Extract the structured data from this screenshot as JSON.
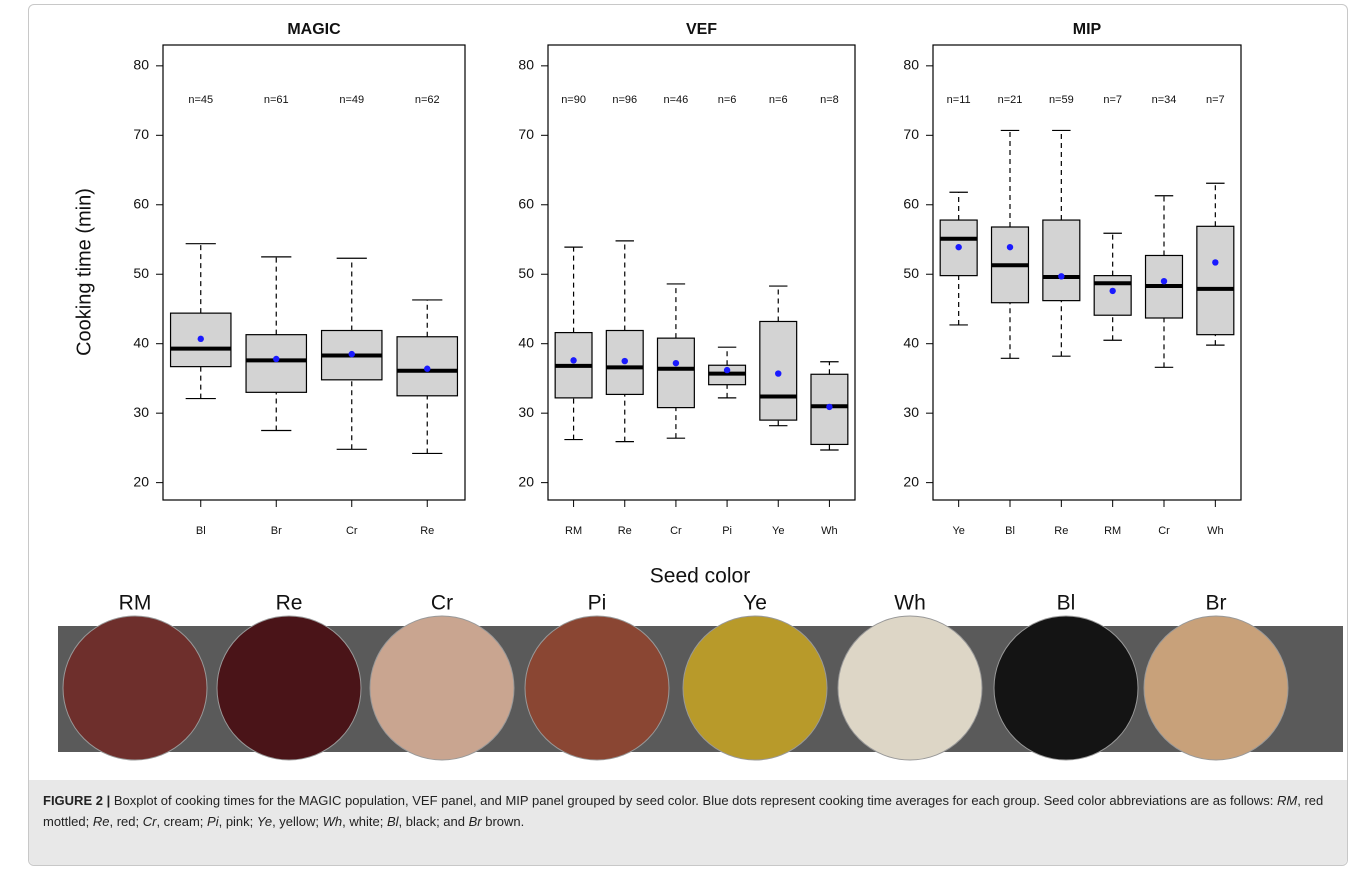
{
  "ylabel": "Cooking time (min)",
  "xlabel": "Seed color",
  "chart_data": [
    {
      "type": "boxplot",
      "title": "MAGIC",
      "categories": [
        "Bl",
        "Br",
        "Cr",
        "Re"
      ],
      "n_labels": [
        "n=45",
        "n=61",
        "n=49",
        "n=62"
      ],
      "whisker_low": [
        32.1,
        27.5,
        24.8,
        24.2
      ],
      "q1": [
        36.7,
        33.0,
        34.8,
        32.5
      ],
      "median": [
        39.3,
        37.6,
        38.3,
        36.1
      ],
      "q3": [
        44.4,
        41.3,
        41.9,
        41.0
      ],
      "whisker_high": [
        54.4,
        52.5,
        52.3,
        46.3
      ],
      "mean": [
        40.7,
        37.8,
        38.5,
        36.4
      ],
      "ylim": [
        17.5,
        83
      ],
      "yticks": [
        20,
        30,
        40,
        50,
        60,
        70,
        80
      ],
      "box_color": "#d3d3d3",
      "mean_color": "#1a1aff"
    },
    {
      "type": "boxplot",
      "title": "VEF",
      "categories": [
        "RM",
        "Re",
        "Cr",
        "Pi",
        "Ye",
        "Wh"
      ],
      "n_labels": [
        "n=90",
        "n=96",
        "n=46",
        "n=6",
        "n=6",
        "n=8"
      ],
      "whisker_low": [
        26.2,
        25.9,
        26.4,
        32.2,
        28.2,
        24.7
      ],
      "q1": [
        32.2,
        32.7,
        30.8,
        34.1,
        29.0,
        25.5
      ],
      "median": [
        36.8,
        36.6,
        36.4,
        35.7,
        32.4,
        31.0
      ],
      "q3": [
        41.6,
        41.9,
        40.8,
        36.9,
        43.2,
        35.6
      ],
      "whisker_high": [
        53.9,
        54.8,
        48.6,
        39.5,
        48.3,
        37.4
      ],
      "mean": [
        37.6,
        37.5,
        37.2,
        36.2,
        35.7,
        30.9
      ],
      "ylim": [
        17.5,
        83
      ],
      "yticks": [
        20,
        30,
        40,
        50,
        60,
        70,
        80
      ],
      "box_color": "#d3d3d3",
      "mean_color": "#1a1aff"
    },
    {
      "type": "boxplot",
      "title": "MIP",
      "categories": [
        "Ye",
        "Bl",
        "Re",
        "RM",
        "Cr",
        "Wh"
      ],
      "n_labels": [
        "n=11",
        "n=21",
        "n=59",
        "n=7",
        "n=34",
        "n=7"
      ],
      "whisker_low": [
        42.7,
        37.9,
        38.2,
        40.5,
        36.6,
        39.8
      ],
      "q1": [
        49.8,
        45.9,
        46.2,
        44.1,
        43.7,
        41.3
      ],
      "median": [
        55.1,
        51.3,
        49.6,
        48.7,
        48.3,
        47.9
      ],
      "q3": [
        57.8,
        56.8,
        57.8,
        49.8,
        52.7,
        56.9
      ],
      "whisker_high": [
        61.8,
        70.7,
        70.7,
        55.9,
        61.3,
        63.1
      ],
      "mean": [
        53.9,
        53.9,
        49.7,
        47.6,
        49.0,
        51.7
      ],
      "ylim": [
        17.5,
        83
      ],
      "yticks": [
        20,
        30,
        40,
        50,
        60,
        70,
        80
      ],
      "box_color": "#d3d3d3",
      "mean_color": "#1a1aff"
    }
  ],
  "photos": {
    "labels": [
      "RM",
      "Re",
      "Cr",
      "Pi",
      "Ye",
      "Wh",
      "Bl",
      "Br"
    ]
  },
  "caption": {
    "label": "FIGURE 2 |",
    "segments": [
      {
        "text": " Boxplot of cooking times for the MAGIC population, VEF panel, and MIP panel grouped by seed color. Blue dots represent cooking time averages for each group. Seed color abbreviations are as follows: "
      },
      {
        "text": "RM",
        "italic": true
      },
      {
        "text": ", red mottled; "
      },
      {
        "text": "Re",
        "italic": true
      },
      {
        "text": ", red; "
      },
      {
        "text": "Cr",
        "italic": true
      },
      {
        "text": ", cream; "
      },
      {
        "text": "Pi",
        "italic": true
      },
      {
        "text": ", pink; "
      },
      {
        "text": "Ye",
        "italic": true
      },
      {
        "text": ", yellow; "
      },
      {
        "text": "Wh",
        "italic": true
      },
      {
        "text": ", white; "
      },
      {
        "text": "Bl",
        "italic": true
      },
      {
        "text": ", black; and "
      },
      {
        "text": "Br",
        "italic": true
      },
      {
        "text": " brown."
      }
    ]
  }
}
